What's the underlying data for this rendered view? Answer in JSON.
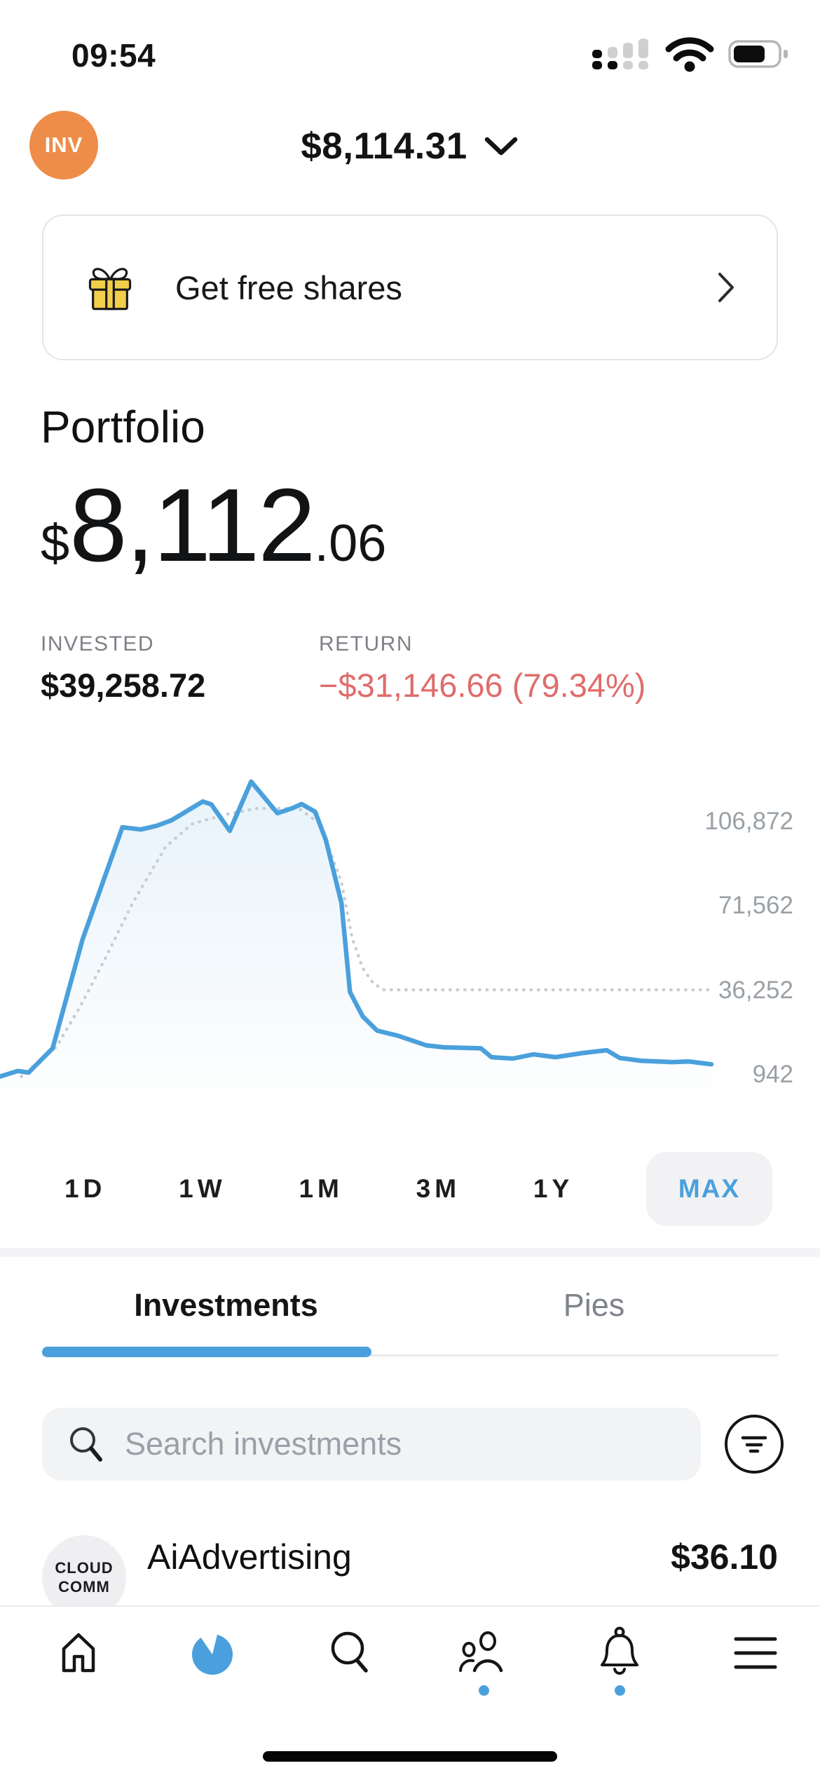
{
  "status_bar": {
    "time": "09:54"
  },
  "header": {
    "avatar": "INV",
    "account_value": "$8,114.31"
  },
  "promo": {
    "label": "Get free shares"
  },
  "portfolio": {
    "title": "Portfolio",
    "currency": "$",
    "whole": "8,112",
    "decimals": ".06",
    "invested_label": "INVESTED",
    "invested_value": "$39,258.72",
    "return_label": "RETURN",
    "return_value": "−$31,146.66 (79.34%)"
  },
  "chart_data": {
    "type": "area",
    "title": "Portfolio value history (MAX range)",
    "unit": "USD",
    "legend": false,
    "y_axis": {
      "position": "right",
      "grid": false,
      "value_at_top": 132400,
      "value_at_bottom": -5500,
      "ticks": [
        {
          "value": 106872,
          "label": "106,872"
        },
        {
          "value": 71562,
          "label": "71,562"
        },
        {
          "value": 36252,
          "label": "36,252"
        },
        {
          "value": 942,
          "label": "942"
        }
      ]
    },
    "series": [
      {
        "name": "portfolio-value",
        "style": "solid",
        "color": "#4AA0DC",
        "fill_top": "rgba(74,160,220,0.13)",
        "fill_bottom": "rgba(74,160,220,0.01)",
        "points": [
          [
            0,
            150
          ],
          [
            0.025,
            2500
          ],
          [
            0.04,
            1800
          ],
          [
            0.074,
            12000
          ],
          [
            0.116,
            57500
          ],
          [
            0.172,
            104500
          ],
          [
            0.198,
            103600
          ],
          [
            0.22,
            105100
          ],
          [
            0.241,
            107400
          ],
          [
            0.285,
            115300
          ],
          [
            0.297,
            114100
          ],
          [
            0.323,
            103000
          ],
          [
            0.353,
            123600
          ],
          [
            0.39,
            110400
          ],
          [
            0.411,
            112500
          ],
          [
            0.424,
            114200
          ],
          [
            0.443,
            111000
          ],
          [
            0.458,
            99200
          ],
          [
            0.48,
            72800
          ],
          [
            0.492,
            35500
          ],
          [
            0.51,
            25300
          ],
          [
            0.53,
            19400
          ],
          [
            0.559,
            17300
          ],
          [
            0.599,
            13250
          ],
          [
            0.624,
            12400
          ],
          [
            0.676,
            12000
          ],
          [
            0.691,
            8270
          ],
          [
            0.721,
            7700
          ],
          [
            0.75,
            9450
          ],
          [
            0.781,
            8280
          ],
          [
            0.819,
            10030
          ],
          [
            0.853,
            11200
          ],
          [
            0.871,
            7980
          ],
          [
            0.901,
            6800
          ],
          [
            0.946,
            6220
          ],
          [
            0.968,
            6500
          ],
          [
            1,
            5300
          ]
        ]
      },
      {
        "name": "invested",
        "style": "dotted",
        "color": "#c9ccd1",
        "points": [
          [
            0.03,
            200
          ],
          [
            0.079,
            12500
          ],
          [
            0.113,
            29600
          ],
          [
            0.149,
            50200
          ],
          [
            0.187,
            73100
          ],
          [
            0.233,
            96400
          ],
          [
            0.27,
            105900
          ],
          [
            0.315,
            109700
          ],
          [
            0.36,
            112400
          ],
          [
            0.42,
            112400
          ],
          [
            0.45,
            105900
          ],
          [
            0.48,
            81600
          ],
          [
            0.495,
            58100
          ],
          [
            0.51,
            45500
          ],
          [
            0.525,
            39100
          ],
          [
            0.54,
            36450
          ],
          [
            1,
            36450
          ]
        ]
      }
    ]
  },
  "time_ranges": {
    "options": [
      "1D",
      "1W",
      "1M",
      "3M",
      "1Y",
      "MAX"
    ],
    "selected": "MAX"
  },
  "tabs": {
    "items": [
      {
        "label": "Investments"
      },
      {
        "label": "Pies"
      }
    ],
    "active": "Investments"
  },
  "search": {
    "placeholder": "Search investments"
  },
  "holdings": [
    {
      "logo_line1": "CLOUD",
      "logo_line2": "COMM",
      "name": "AiAdvertising",
      "price": "$36.10"
    }
  ],
  "colors": {
    "accent_blue": "#4AA0DC",
    "negative_red": "#E06C6C",
    "avatar_orange": "#EE8C49",
    "gift_yellow": "#F2CF4A",
    "muted_gray": "#9aa0a6",
    "pill_gray": "#f2f2f4"
  }
}
